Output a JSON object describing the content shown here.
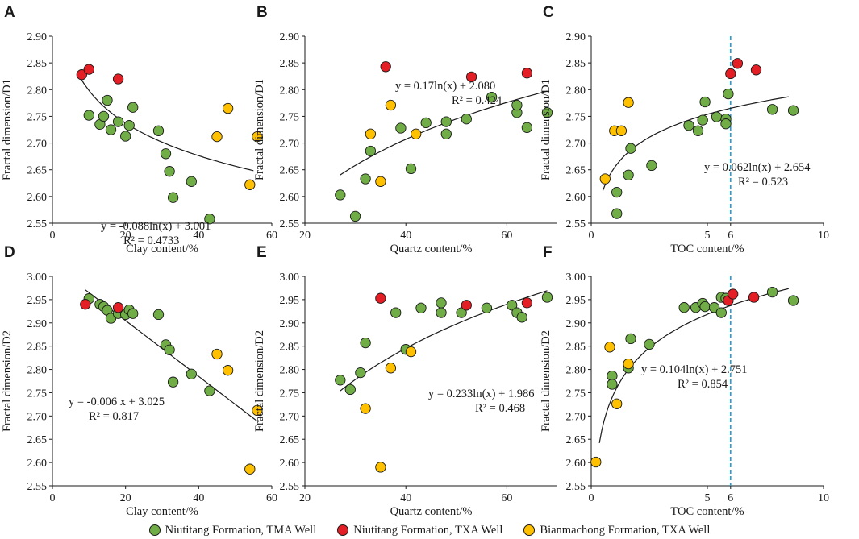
{
  "colors": {
    "tma_green": "#70ad47",
    "txa_red": "#e31e24",
    "bian_yellow": "#ffc000",
    "trend_line": "#1a1a1a",
    "toc_marker_line": "#1f9fe0",
    "axis": "#1a1a1a"
  },
  "legend": {
    "items": [
      {
        "label": "Niutitang Formation, TMA Well",
        "color": "#70ad47"
      },
      {
        "label": "Niutitang Formation, TXA Well",
        "color": "#e31e24"
      },
      {
        "label": "Bianmachong Formation, TXA Well",
        "color": "#ffc000"
      }
    ]
  },
  "chart_data": [
    {
      "panel": "A",
      "type": "scatter",
      "xlabel": "Clay content/%",
      "ylabel": "Fractal dimension/D1",
      "xlim": [
        0,
        60
      ],
      "ylim": [
        2.55,
        2.9
      ],
      "xticks": [
        "0",
        "20",
        "40",
        "60"
      ],
      "xtick_values": [
        0,
        20,
        40,
        60
      ],
      "yticks": [
        "2.55",
        "2.60",
        "2.65",
        "2.70",
        "2.75",
        "2.80",
        "2.85",
        "2.90"
      ],
      "ytick_values": [
        2.55,
        2.6,
        2.65,
        2.7,
        2.75,
        2.8,
        2.85,
        2.9
      ],
      "equation": "y = -0.088ln(x) + 3.001",
      "r2": "R² = 0.4733",
      "trend": {
        "kind": "log",
        "a": -0.088,
        "b": 3.001,
        "xmin": 8,
        "xmax": 55
      },
      "series": [
        {
          "name": "Niutitang Formation, TMA Well",
          "color": "#70ad47",
          "points": [
            [
              10,
              2.752
            ],
            [
              13,
              2.735
            ],
            [
              14,
              2.75
            ],
            [
              15,
              2.78
            ],
            [
              16,
              2.725
            ],
            [
              18,
              2.74
            ],
            [
              20,
              2.713
            ],
            [
              21,
              2.733
            ],
            [
              22,
              2.767
            ],
            [
              29,
              2.723
            ],
            [
              31,
              2.68
            ],
            [
              32,
              2.647
            ],
            [
              33,
              2.598
            ],
            [
              38,
              2.628
            ],
            [
              43,
              2.558
            ]
          ]
        },
        {
          "name": "Niutitang Formation, TXA Well",
          "color": "#e31e24",
          "points": [
            [
              8,
              2.828
            ],
            [
              10,
              2.838
            ],
            [
              18,
              2.82
            ]
          ]
        },
        {
          "name": "Bianmachong Formation, TXA Well",
          "color": "#ffc000",
          "points": [
            [
              45,
              2.712
            ],
            [
              48,
              2.765
            ],
            [
              54,
              2.622
            ],
            [
              56,
              2.712
            ]
          ]
        }
      ]
    },
    {
      "panel": "B",
      "type": "scatter",
      "xlabel": "Quartz content/%",
      "ylabel": "Fractal dimension/D1",
      "xlim": [
        20,
        70
      ],
      "ylim": [
        2.55,
        2.9
      ],
      "xticks": [
        "20",
        "40",
        "60"
      ],
      "xtick_values": [
        20,
        40,
        60
      ],
      "yticks": [
        "2.55",
        "2.60",
        "2.65",
        "2.70",
        "2.75",
        "2.80",
        "2.85",
        "2.90"
      ],
      "ytick_values": [
        2.55,
        2.6,
        2.65,
        2.7,
        2.75,
        2.8,
        2.85,
        2.9
      ],
      "equation": "y = 0.17ln(x) + 2.080",
      "r2": "R² = 0.424",
      "trend": {
        "kind": "log",
        "a": 0.17,
        "b": 2.08,
        "xmin": 27,
        "xmax": 68
      },
      "series": [
        {
          "name": "Niutitang Formation, TMA Well",
          "color": "#70ad47",
          "points": [
            [
              27,
              2.603
            ],
            [
              30,
              2.563
            ],
            [
              32,
              2.633
            ],
            [
              33,
              2.685
            ],
            [
              39,
              2.728
            ],
            [
              41,
              2.652
            ],
            [
              44,
              2.738
            ],
            [
              48,
              2.74
            ],
            [
              48,
              2.717
            ],
            [
              52,
              2.745
            ],
            [
              57,
              2.786
            ],
            [
              62,
              2.757
            ],
            [
              62,
              2.771
            ],
            [
              64,
              2.729
            ],
            [
              68,
              2.757
            ]
          ]
        },
        {
          "name": "Niutitang Formation, TXA Well",
          "color": "#e31e24",
          "points": [
            [
              36,
              2.843
            ],
            [
              53,
              2.824
            ],
            [
              64,
              2.831
            ]
          ]
        },
        {
          "name": "Bianmachong Formation, TXA Well",
          "color": "#ffc000",
          "points": [
            [
              33,
              2.717
            ],
            [
              35,
              2.628
            ],
            [
              37,
              2.771
            ],
            [
              42,
              2.717
            ]
          ]
        }
      ]
    },
    {
      "panel": "C",
      "type": "scatter",
      "xlabel": "TOC content/%",
      "ylabel": "Fractal dimension/D1",
      "xlim": [
        0,
        10
      ],
      "ylim": [
        2.55,
        2.9
      ],
      "xticks": [
        "0",
        "5",
        "6",
        "10"
      ],
      "xtick_values": [
        0,
        5,
        6,
        10
      ],
      "yticks": [
        "2.55",
        "2.60",
        "2.65",
        "2.70",
        "2.75",
        "2.80",
        "2.85",
        "2.90"
      ],
      "ytick_values": [
        2.55,
        2.6,
        2.65,
        2.7,
        2.75,
        2.8,
        2.85,
        2.9
      ],
      "equation": "y = 0.062ln(x) + 2.654",
      "r2": "R² = 0.523",
      "reference_x": 6,
      "trend": {
        "kind": "log",
        "a": 0.062,
        "b": 2.654,
        "xmin": 0.5,
        "xmax": 8.5
      },
      "series": [
        {
          "name": "Niutitang Formation, TMA Well",
          "color": "#70ad47",
          "points": [
            [
              1.1,
              2.608
            ],
            [
              1.1,
              2.568
            ],
            [
              1.6,
              2.64
            ],
            [
              1.7,
              2.69
            ],
            [
              2.6,
              2.658
            ],
            [
              4.2,
              2.733
            ],
            [
              4.6,
              2.723
            ],
            [
              4.8,
              2.743
            ],
            [
              4.9,
              2.777
            ],
            [
              5.4,
              2.749
            ],
            [
              5.8,
              2.745
            ],
            [
              5.8,
              2.736
            ],
            [
              5.9,
              2.792
            ],
            [
              7.8,
              2.763
            ],
            [
              8.7,
              2.761
            ]
          ]
        },
        {
          "name": "Niutitang Formation, TXA Well",
          "color": "#e31e24",
          "points": [
            [
              6.0,
              2.83
            ],
            [
              6.3,
              2.849
            ],
            [
              7.1,
              2.837
            ]
          ]
        },
        {
          "name": "Bianmachong Formation, TXA Well",
          "color": "#ffc000",
          "points": [
            [
              0.6,
              2.633
            ],
            [
              1.0,
              2.723
            ],
            [
              1.3,
              2.723
            ],
            [
              1.6,
              2.776
            ]
          ]
        }
      ]
    },
    {
      "panel": "D",
      "type": "scatter",
      "xlabel": "Clay content/%",
      "ylabel": "Fractal dimension/D2",
      "xlim": [
        0,
        60
      ],
      "ylim": [
        2.55,
        3.0
      ],
      "xticks": [
        "0",
        "20",
        "40",
        "60"
      ],
      "xtick_values": [
        0,
        20,
        40,
        60
      ],
      "yticks": [
        "2.55",
        "2.60",
        "2.65",
        "2.70",
        "2.75",
        "2.80",
        "2.85",
        "2.90",
        "2.95",
        "3.00"
      ],
      "ytick_values": [
        2.55,
        2.6,
        2.65,
        2.7,
        2.75,
        2.8,
        2.85,
        2.9,
        2.95,
        3.0
      ],
      "equation": "y = -0.006 x + 3.025",
      "r2": "R² = 0.817",
      "trend": {
        "kind": "linear",
        "a": -0.006,
        "b": 3.025,
        "xmin": 9,
        "xmax": 56
      },
      "series": [
        {
          "name": "Niutitang Formation, TMA Well",
          "color": "#70ad47",
          "points": [
            [
              10,
              2.952
            ],
            [
              13,
              2.94
            ],
            [
              14,
              2.935
            ],
            [
              15,
              2.927
            ],
            [
              16,
              2.91
            ],
            [
              18,
              2.92
            ],
            [
              20,
              2.918
            ],
            [
              21,
              2.928
            ],
            [
              22,
              2.92
            ],
            [
              29,
              2.918
            ],
            [
              31,
              2.853
            ],
            [
              32,
              2.842
            ],
            [
              33,
              2.773
            ],
            [
              38,
              2.79
            ],
            [
              43,
              2.754
            ]
          ]
        },
        {
          "name": "Niutitang Formation, TXA Well",
          "color": "#e31e24",
          "points": [
            [
              9,
              2.94
            ],
            [
              18,
              2.933
            ]
          ]
        },
        {
          "name": "Bianmachong Formation, TXA Well",
          "color": "#ffc000",
          "points": [
            [
              45,
              2.833
            ],
            [
              48,
              2.798
            ],
            [
              54,
              2.586
            ],
            [
              56,
              2.712
            ]
          ]
        }
      ]
    },
    {
      "panel": "E",
      "type": "scatter",
      "xlabel": "Quartz content/%",
      "ylabel": "Fractal dimension/D2",
      "xlim": [
        20,
        70
      ],
      "ylim": [
        2.55,
        3.0
      ],
      "xticks": [
        "20",
        "40",
        "60"
      ],
      "xtick_values": [
        20,
        40,
        60
      ],
      "yticks": [
        "2.55",
        "2.60",
        "2.65",
        "2.70",
        "2.75",
        "2.80",
        "2.85",
        "2.90",
        "2.95",
        "3.00"
      ],
      "ytick_values": [
        2.55,
        2.6,
        2.65,
        2.7,
        2.75,
        2.8,
        2.85,
        2.9,
        2.95,
        3.0
      ],
      "equation": "y = 0.233ln(x) + 1.986",
      "r2": "R² = 0.468",
      "trend": {
        "kind": "log",
        "a": 0.233,
        "b": 1.986,
        "xmin": 27,
        "xmax": 68
      },
      "series": [
        {
          "name": "Niutitang Formation, TMA Well",
          "color": "#70ad47",
          "points": [
            [
              27,
              2.777
            ],
            [
              29,
              2.757
            ],
            [
              31,
              2.793
            ],
            [
              32,
              2.857
            ],
            [
              38,
              2.922
            ],
            [
              40,
              2.843
            ],
            [
              43,
              2.932
            ],
            [
              47,
              2.922
            ],
            [
              47,
              2.943
            ],
            [
              51,
              2.922
            ],
            [
              56,
              2.932
            ],
            [
              61,
              2.938
            ],
            [
              62,
              2.922
            ],
            [
              63,
              2.912
            ],
            [
              68,
              2.955
            ]
          ]
        },
        {
          "name": "Niutitang Formation, TXA Well",
          "color": "#e31e24",
          "points": [
            [
              35,
              2.953
            ],
            [
              52,
              2.938
            ],
            [
              64,
              2.943
            ]
          ]
        },
        {
          "name": "Bianmachong Formation, TXA Well",
          "color": "#ffc000",
          "points": [
            [
              32,
              2.716
            ],
            [
              35,
              2.59
            ],
            [
              37,
              2.803
            ],
            [
              41,
              2.838
            ]
          ]
        }
      ]
    },
    {
      "panel": "F",
      "type": "scatter",
      "xlabel": "TOC content/%",
      "ylabel": "Fractal dimension/D2",
      "xlim": [
        0,
        10
      ],
      "ylim": [
        2.55,
        3.0
      ],
      "xticks": [
        "0",
        "5",
        "6",
        "10"
      ],
      "xtick_values": [
        0,
        5,
        6,
        10
      ],
      "yticks": [
        "2.55",
        "2.60",
        "2.65",
        "2.70",
        "2.75",
        "2.80",
        "2.85",
        "2.90",
        "2.95",
        "3.00"
      ],
      "ytick_values": [
        2.55,
        2.6,
        2.65,
        2.7,
        2.75,
        2.8,
        2.85,
        2.9,
        2.95,
        3.0
      ],
      "equation": "y = 0.104ln(x) + 2.751",
      "r2": "R² = 0.854",
      "reference_x": 6,
      "trend": {
        "kind": "log",
        "a": 0.104,
        "b": 2.751,
        "xmin": 0.35,
        "xmax": 8.5
      },
      "series": [
        {
          "name": "Niutitang Formation, TMA Well",
          "color": "#70ad47",
          "points": [
            [
              0.9,
              2.786
            ],
            [
              0.9,
              2.768
            ],
            [
              1.6,
              2.803
            ],
            [
              1.7,
              2.866
            ],
            [
              2.5,
              2.854
            ],
            [
              4.0,
              2.933
            ],
            [
              4.5,
              2.933
            ],
            [
              4.8,
              2.942
            ],
            [
              4.9,
              2.935
            ],
            [
              5.3,
              2.933
            ],
            [
              5.6,
              2.922
            ],
            [
              5.6,
              2.955
            ],
            [
              5.8,
              2.953
            ],
            [
              7.8,
              2.966
            ],
            [
              8.7,
              2.948
            ]
          ]
        },
        {
          "name": "Niutitang Formation, TXA Well",
          "color": "#e31e24",
          "points": [
            [
              5.9,
              2.948
            ],
            [
              6.1,
              2.962
            ],
            [
              7.0,
              2.955
            ]
          ]
        },
        {
          "name": "Bianmachong Formation, TXA Well",
          "color": "#ffc000",
          "points": [
            [
              0.2,
              2.601
            ],
            [
              0.8,
              2.848
            ],
            [
              1.1,
              2.726
            ],
            [
              1.6,
              2.812
            ]
          ]
        }
      ]
    }
  ]
}
